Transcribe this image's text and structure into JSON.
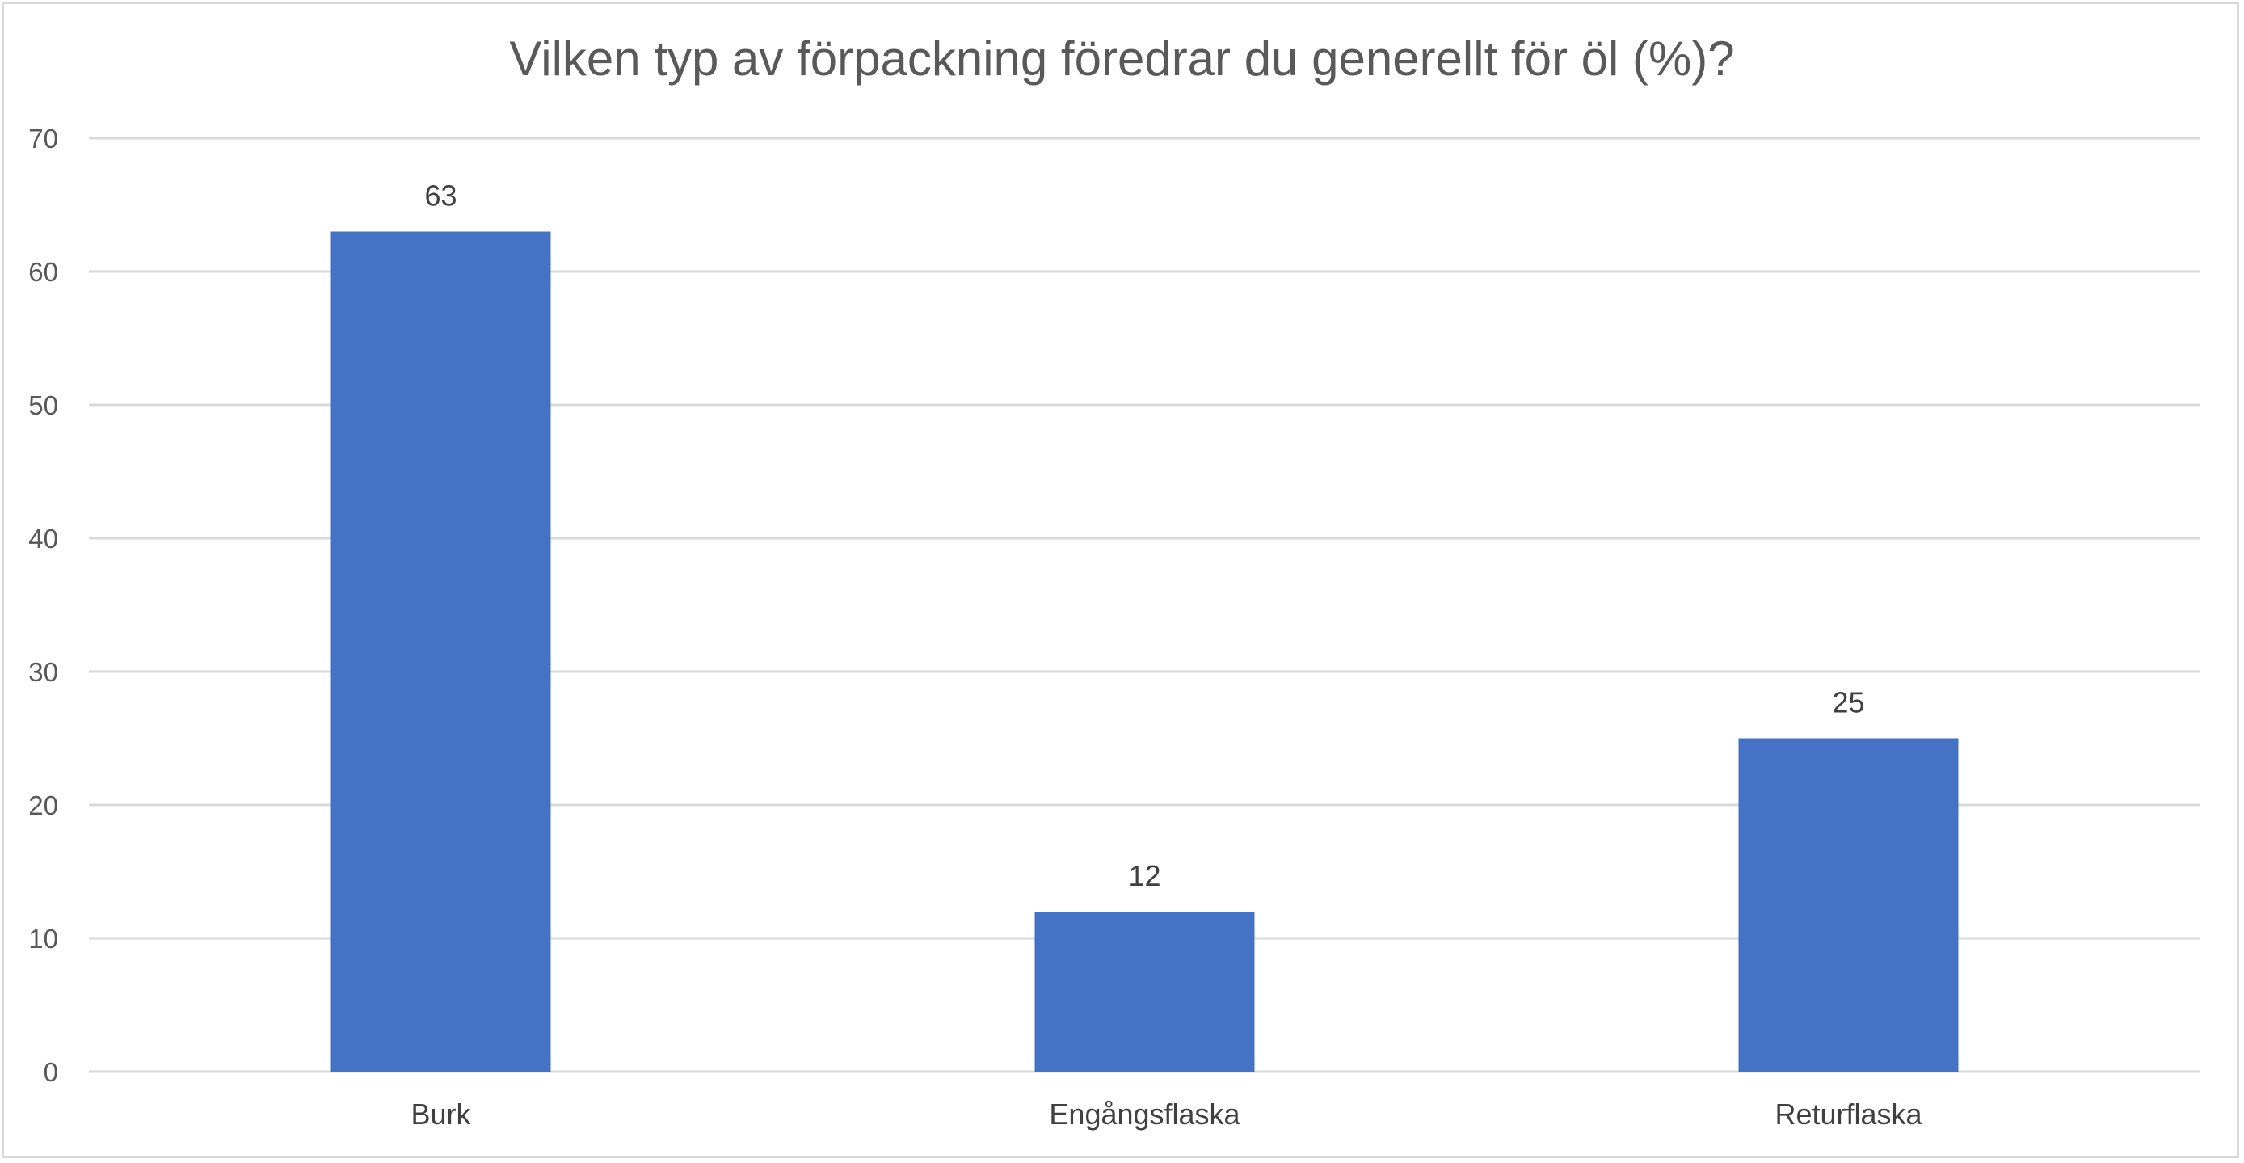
{
  "chart_data": {
    "type": "bar",
    "title": "Vilken typ av förpackning föredrar du generellt för öl (%)?",
    "categories": [
      "Burk",
      "Engångsflaska",
      "Returflaska"
    ],
    "values": [
      63,
      12,
      25
    ],
    "data_labels": [
      "63",
      "12",
      "25"
    ],
    "ylim": [
      0,
      70
    ],
    "yticks": [
      0,
      10,
      20,
      30,
      40,
      50,
      60,
      70
    ],
    "grid": true,
    "legend": "none",
    "bar_color": "#4472c4",
    "grid_color": "#d9d9d9",
    "xlabel": "",
    "ylabel": ""
  }
}
